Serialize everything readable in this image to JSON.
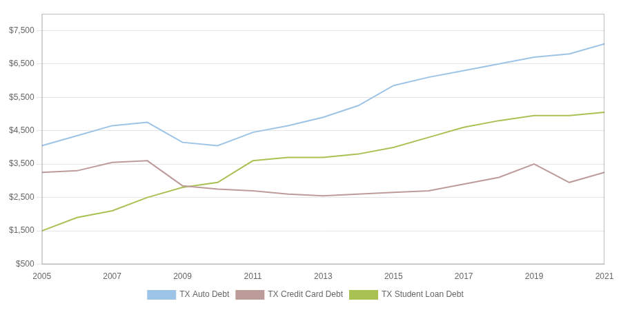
{
  "chart_data": {
    "type": "line",
    "x": [
      2005,
      2006,
      2007,
      2008,
      2009,
      2010,
      2011,
      2012,
      2013,
      2014,
      2015,
      2016,
      2017,
      2018,
      2019,
      2020,
      2021
    ],
    "series": [
      {
        "name": "TX Auto Debt",
        "color": "#9DC3E6",
        "values": [
          4050,
          4350,
          4650,
          4750,
          4150,
          4050,
          4450,
          4650,
          4900,
          5250,
          5850,
          6100,
          6300,
          6500,
          6700,
          6800,
          7100
        ]
      },
      {
        "name": "TX Credit Card Debt",
        "color": "#BE9B9B",
        "values": [
          3250,
          3300,
          3550,
          3600,
          2850,
          2750,
          2700,
          2600,
          2550,
          2600,
          2650,
          2700,
          2900,
          3100,
          3500,
          2950,
          3250
        ]
      },
      {
        "name": "TX Student Loan Debt",
        "color": "#A9C153",
        "values": [
          1500,
          1900,
          2100,
          2500,
          2800,
          2950,
          3600,
          3700,
          3700,
          3800,
          4000,
          4300,
          4600,
          4800,
          4950,
          4950,
          5050
        ]
      }
    ],
    "xlim": [
      2005,
      2021
    ],
    "xticks": [
      2005,
      2007,
      2009,
      2011,
      2013,
      2015,
      2017,
      2019,
      2021
    ],
    "ylim": [
      500,
      8000
    ],
    "yticks": [
      {
        "value": 500,
        "label": "$500"
      },
      {
        "value": 1500,
        "label": "$1,500"
      },
      {
        "value": 2500,
        "label": "$2,500"
      },
      {
        "value": 3500,
        "label": "$3,500"
      },
      {
        "value": 4500,
        "label": "$4,500"
      },
      {
        "value": 5500,
        "label": "$5,500"
      },
      {
        "value": 6500,
        "label": "$6,500"
      },
      {
        "value": 7500,
        "label": "$7,500"
      }
    ],
    "grid": true,
    "legend": "bottom"
  }
}
